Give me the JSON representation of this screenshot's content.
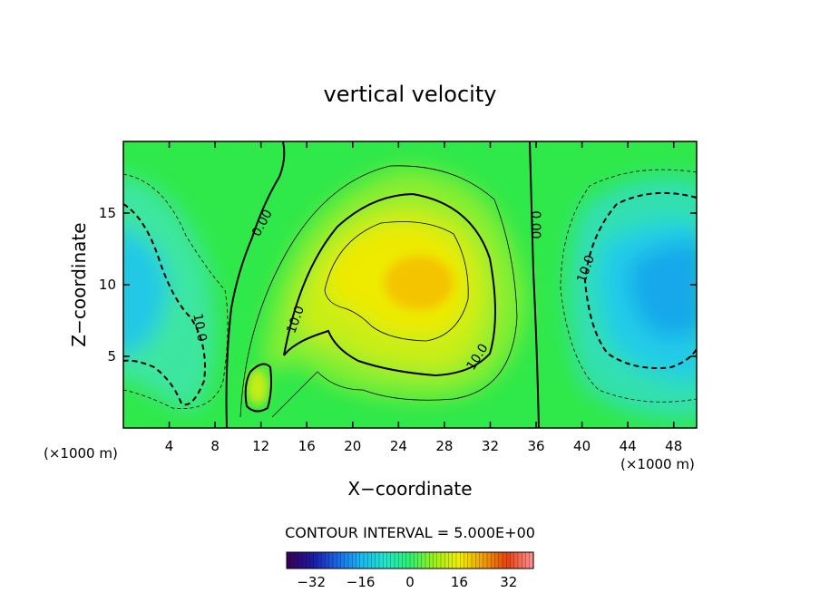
{
  "chart_data": {
    "type": "heatmap",
    "title": "vertical velocity",
    "xlabel": "X−coordinate",
    "ylabel": "Z−coordinate",
    "x_unit_left": "(×1000 m)",
    "x_unit_right": "(×1000 m)",
    "xlim": [
      0,
      50
    ],
    "ylim": [
      0,
      20
    ],
    "x_ticks": [
      4,
      8,
      12,
      16,
      20,
      24,
      28,
      32,
      36,
      40,
      44,
      48
    ],
    "y_ticks": [
      5,
      10,
      15
    ],
    "x_tick_labels": [
      "4",
      "8",
      "12",
      "16",
      "20",
      "24",
      "28",
      "32",
      "36",
      "40",
      "44",
      "48"
    ],
    "y_tick_labels": [
      "5",
      "10",
      "15"
    ],
    "field_features": [
      {
        "kind": "max",
        "x": 25,
        "z": 10,
        "value": 22
      },
      {
        "kind": "min",
        "x": 1,
        "z": 10.5,
        "value": -16
      },
      {
        "kind": "min",
        "x": 48,
        "z": 10.5,
        "value": -20
      },
      {
        "kind": "max",
        "x": 11.8,
        "z": 2.8,
        "value": 12
      }
    ],
    "contour_labels": [
      {
        "text": "0.00",
        "x": 12.5,
        "z": 14.0,
        "angle": -62
      },
      {
        "text": "0.00",
        "x": 35.5,
        "z": 14.0,
        "angle": 90
      },
      {
        "text": "10.0",
        "x": 15.4,
        "z": 7.5,
        "angle": -70
      },
      {
        "text": "10.0",
        "x": 30.7,
        "z": 4.8,
        "angle": -58
      },
      {
        "text": "10.0",
        "x": 5.2,
        "z": 7.3,
        "angle": 80
      },
      {
        "text": "10.0",
        "x": 40.5,
        "z": 11.0,
        "angle": -70
      }
    ],
    "contour_interval_label": "CONTOUR INTERVAL = 5.000E+00",
    "contour_interval": 5.0,
    "colorbar": {
      "range": [
        -40,
        40
      ],
      "tick_values": [
        -32,
        -16,
        0,
        16,
        32
      ],
      "tick_labels": [
        "−32",
        "−16",
        "0",
        "16",
        "32"
      ]
    },
    "colors": {
      "background": "#ffffff",
      "axes": "#000000",
      "colormap": [
        "#3a005a",
        "#1a1aa6",
        "#1a66e6",
        "#1ab8f0",
        "#22e6c8",
        "#2ef070",
        "#9cf018",
        "#f0f000",
        "#f0a000",
        "#e64010",
        "#ff8c8c"
      ]
    }
  }
}
